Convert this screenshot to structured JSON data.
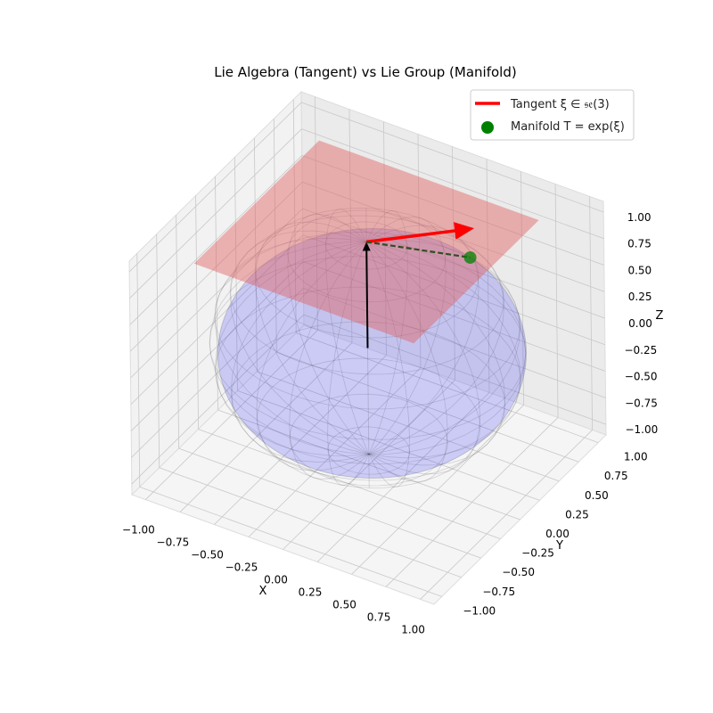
{
  "chart_data": {
    "type": "3d",
    "title": "Lie Algebra (Tangent) vs Lie Group (Manifold)",
    "xlabel": "X",
    "ylabel": "Y",
    "zlabel": "Z",
    "xlim": [
      -1.1,
      1.1
    ],
    "ylim": [
      -1.1,
      1.1
    ],
    "zlim": [
      -1.1,
      1.1
    ],
    "xticks": [
      "−1.00",
      "−0.75",
      "−0.50",
      "−0.25",
      "0.00",
      "0.25",
      "0.50",
      "0.75",
      "1.00"
    ],
    "yticks": [
      "−1.00",
      "−0.75",
      "−0.50",
      "−0.25",
      "0.00",
      "0.25",
      "0.50",
      "0.75",
      "1.00"
    ],
    "zticks": [
      "−1.00",
      "−0.75",
      "−0.50",
      "−0.25",
      "0.00",
      "0.25",
      "0.50",
      "0.75",
      "1.00"
    ],
    "tick_values": [
      -1,
      -0.75,
      -0.5,
      -0.25,
      0,
      0.25,
      0.5,
      0.75,
      1
    ],
    "sphere": {
      "center": [
        0,
        0,
        0
      ],
      "radius": 1,
      "color": "#0000ff"
    },
    "tangent_plane": {
      "z": 1,
      "half_extent": 0.8,
      "color": "#e06060"
    },
    "normal_arrow": {
      "from": [
        0,
        0,
        0
      ],
      "to": [
        0,
        0,
        1
      ],
      "color": "#000000"
    },
    "tangent_vector": {
      "from": [
        0,
        0,
        1
      ],
      "to": [
        0.5,
        0.5,
        1
      ],
      "color": "#ff0000"
    },
    "manifold_point": {
      "xyz": [
        0.48,
        0.48,
        0.73
      ],
      "color": "#008000"
    },
    "geodesic_link": {
      "from": [
        0,
        0,
        1
      ],
      "to": [
        0.48,
        0.48,
        0.73
      ],
      "color": "#2f4f1f",
      "style": "dashed"
    },
    "legend": {
      "placement": "top-right",
      "entries": [
        {
          "label": "Tangent ξ ∈ 𝔰𝔢(3)",
          "marker": "line",
          "color": "#ff0000"
        },
        {
          "label": "Manifold T = exp(ξ)",
          "marker": "circle",
          "color": "#008000"
        }
      ]
    }
  }
}
